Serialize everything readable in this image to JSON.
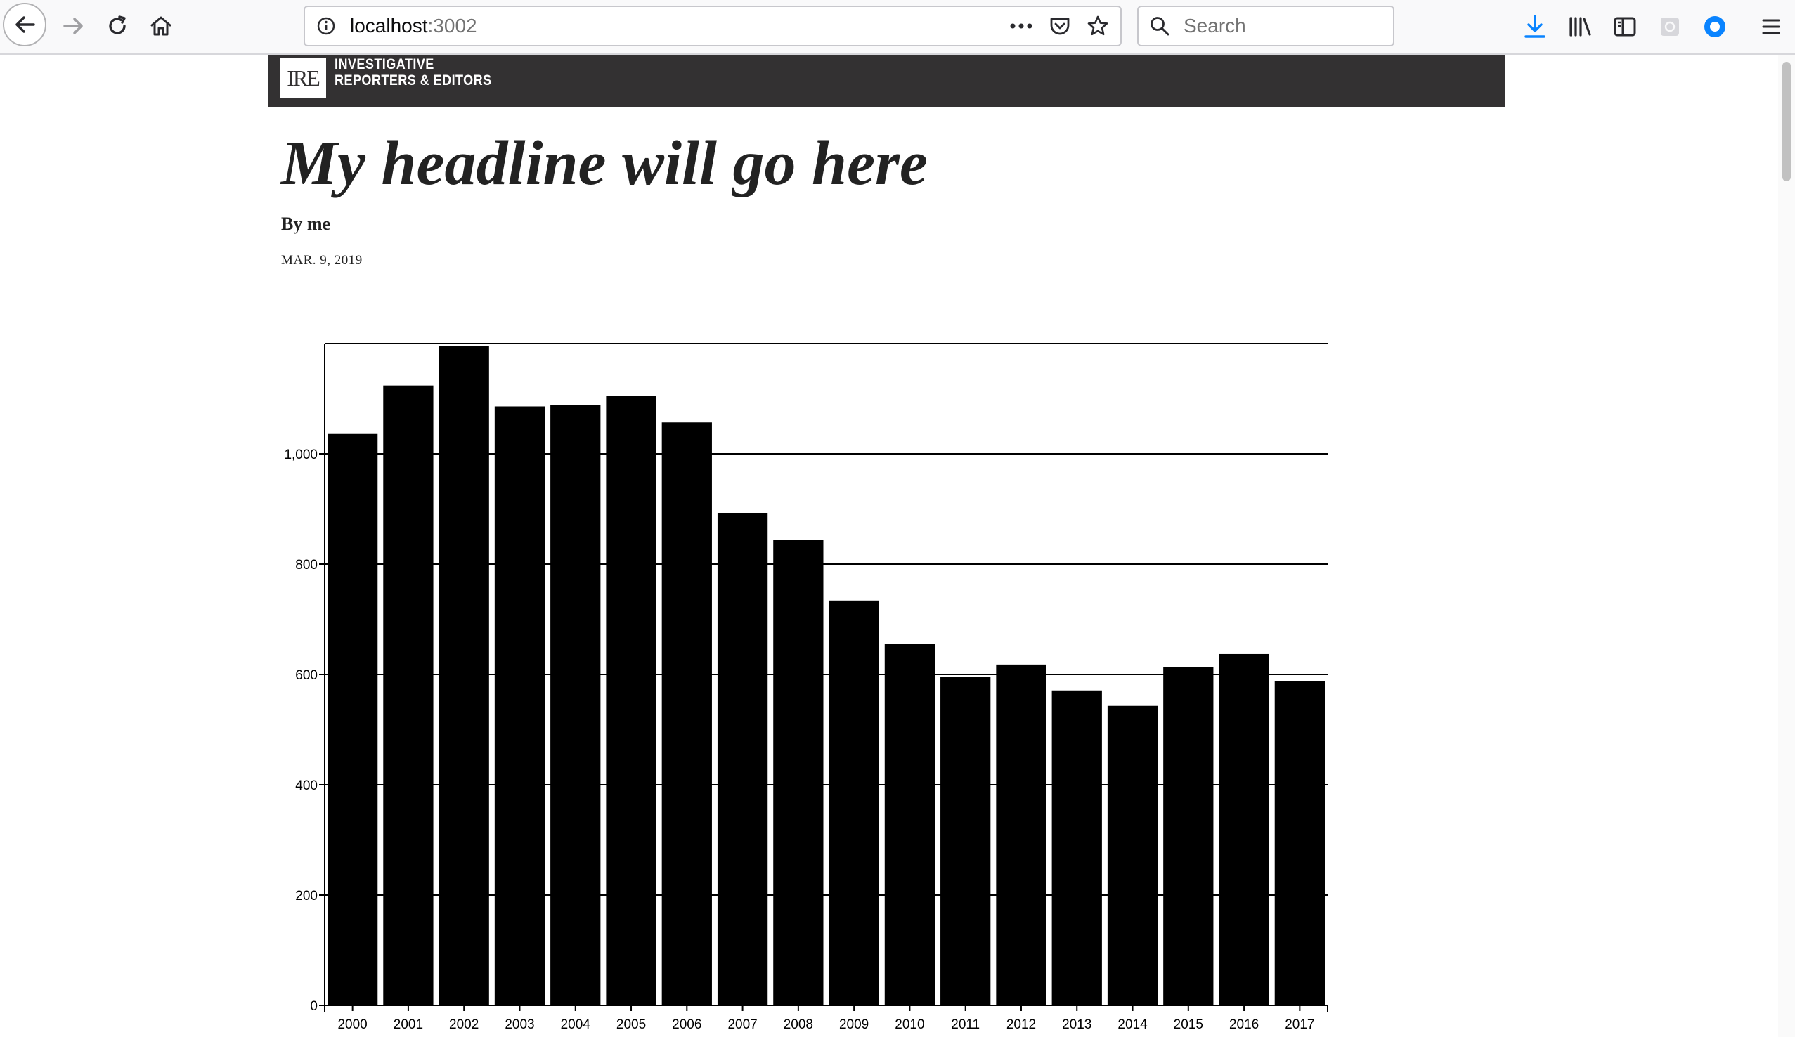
{
  "browser": {
    "url_host": "localhost",
    "url_port": ":3002",
    "search_placeholder": "Search",
    "accent_color": "#0a84ff"
  },
  "site": {
    "logo_text": "IRE",
    "name_line1": "INVESTIGATIVE",
    "name_line2": "REPORTERS & EDITORS",
    "bar_color": "#333132"
  },
  "article": {
    "headline": "My headline will go here",
    "byline": "By me",
    "date": "MAR. 9, 2019"
  },
  "chart_data": {
    "type": "bar",
    "categories": [
      "2000",
      "2001",
      "2002",
      "2003",
      "2004",
      "2005",
      "2006",
      "2007",
      "2008",
      "2009",
      "2010",
      "2011",
      "2012",
      "2013",
      "2014",
      "2015",
      "2016",
      "2017"
    ],
    "values": [
      1036,
      1124,
      1196,
      1086,
      1088,
      1105,
      1057,
      893,
      844,
      734,
      655,
      595,
      618,
      571,
      543,
      614,
      637,
      588
    ],
    "ylim": [
      0,
      1200
    ],
    "yticks": [
      0,
      200,
      400,
      600,
      800,
      1000
    ],
    "ytick_labels": [
      "0",
      "200",
      "400",
      "600",
      "800",
      "1,000"
    ],
    "xlabel": "",
    "ylabel": "",
    "title": "",
    "grid": true,
    "bar_color": "#000000"
  }
}
